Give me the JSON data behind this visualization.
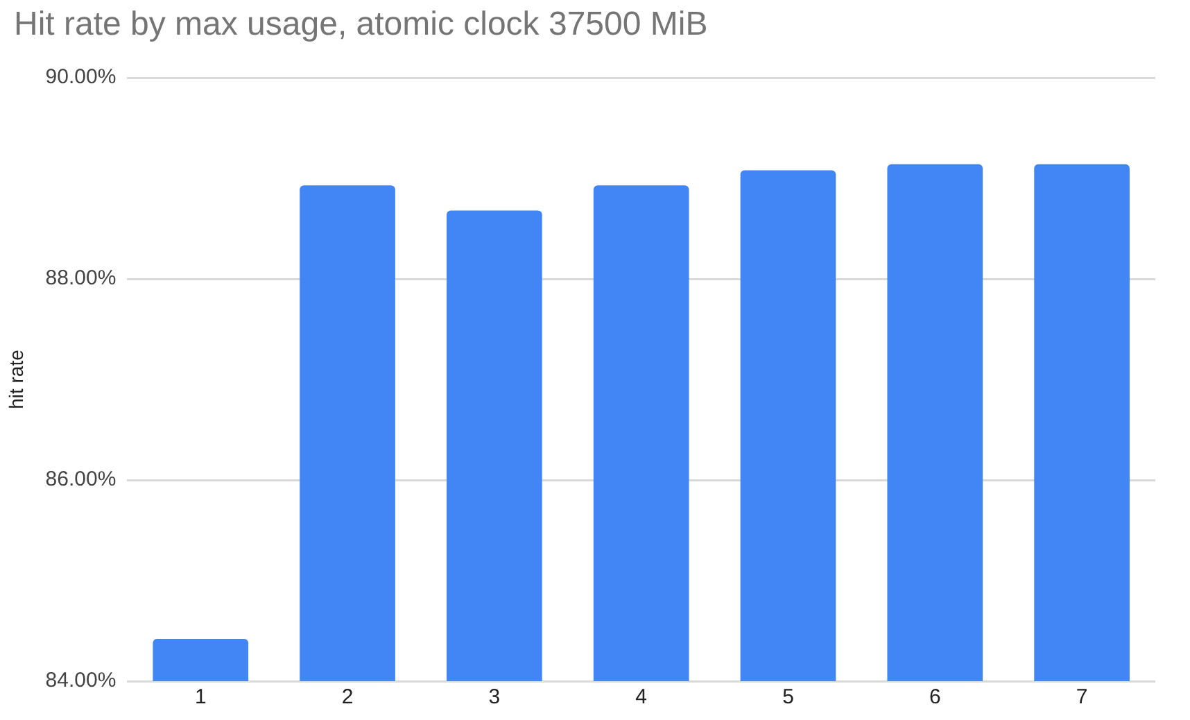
{
  "chart_data": {
    "type": "bar",
    "title": "Hit rate by max usage, atomic clock 37500 MiB",
    "ylabel": "hit rate",
    "categories": [
      "1",
      "2",
      "3",
      "4",
      "5",
      "6",
      "7"
    ],
    "values": [
      84.42,
      88.93,
      88.68,
      88.93,
      89.08,
      89.14,
      89.14
    ],
    "color": "#4285f4",
    "ylim": [
      84,
      90
    ],
    "yticks": [
      {
        "value": 84,
        "label": "84.00%"
      },
      {
        "value": 86,
        "label": "86.00%"
      },
      {
        "value": 88,
        "label": "88.00%"
      },
      {
        "value": 90,
        "label": "90.00%"
      }
    ],
    "grid": "y"
  }
}
